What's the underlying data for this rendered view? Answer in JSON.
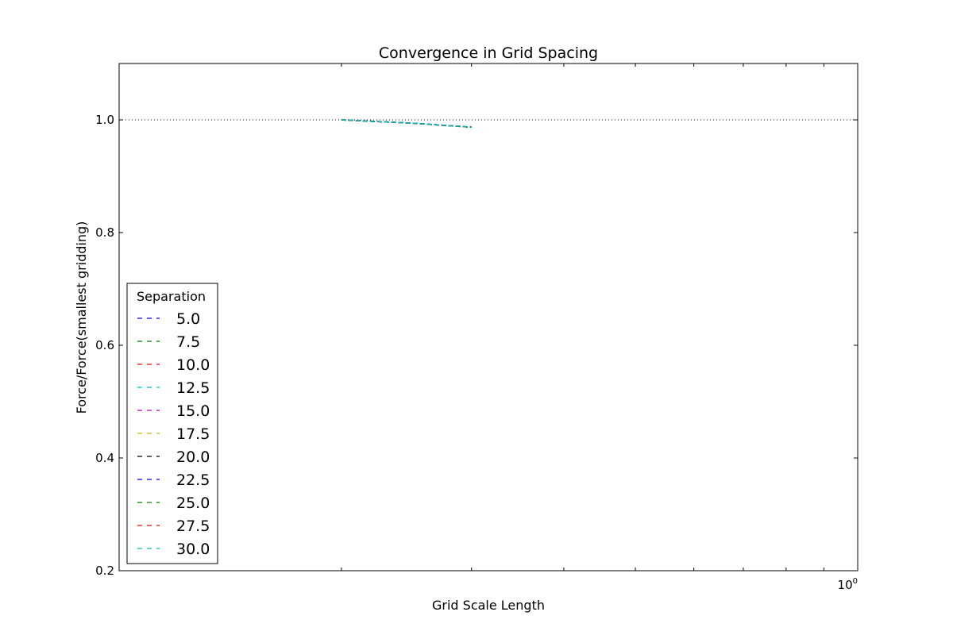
{
  "chart_data": {
    "type": "line",
    "title": "Convergence in Grid Spacing",
    "xlabel": "Grid Scale Length",
    "ylabel": "Force/Force(smallest gridding)",
    "xscale": "log",
    "xlim": [
      0.1,
      1.0
    ],
    "ylim": [
      0.2,
      1.1
    ],
    "yticks": [
      0.2,
      0.4,
      0.6,
      0.8,
      1.0
    ],
    "ytick_labels": [
      "0.2",
      "0.4",
      "0.6",
      "0.8",
      "1.0"
    ],
    "xtick_label_base": "10",
    "xtick_label_exp": "0",
    "reference_line": {
      "y": 1.0,
      "style": "dotted",
      "color": "#000000"
    },
    "grid": false,
    "legend": {
      "title": "Separation",
      "placement": "lower-left",
      "entries": [
        "5.0",
        "7.5",
        "10.0",
        "12.5",
        "15.0",
        "17.5",
        "20.0",
        "22.5",
        "25.0",
        "27.5",
        "30.0"
      ]
    },
    "series": [
      {
        "name": "5.0",
        "color": "#0000ff",
        "x": [
          0.2,
          0.25,
          0.3
        ],
        "y": [
          1.0,
          0.994,
          0.987
        ]
      },
      {
        "name": "7.5",
        "color": "#008000",
        "x": [
          0.2,
          0.25,
          0.3
        ],
        "y": [
          1.0,
          0.994,
          0.987
        ]
      },
      {
        "name": "10.0",
        "color": "#ff0000",
        "x": [
          0.2,
          0.25,
          0.3
        ],
        "y": [
          1.0,
          0.994,
          0.987
        ]
      },
      {
        "name": "12.5",
        "color": "#00bfbf",
        "x": [
          0.2,
          0.25,
          0.3
        ],
        "y": [
          1.0,
          0.994,
          0.987
        ]
      },
      {
        "name": "15.0",
        "color": "#bf00bf",
        "x": [
          0.2,
          0.25,
          0.3
        ],
        "y": [
          1.0,
          0.994,
          0.987
        ]
      },
      {
        "name": "17.5",
        "color": "#bfbf00",
        "x": [
          0.2,
          0.25,
          0.3
        ],
        "y": [
          1.0,
          0.994,
          0.987
        ]
      },
      {
        "name": "20.0",
        "color": "#000000",
        "x": [
          0.2,
          0.25,
          0.3
        ],
        "y": [
          1.0,
          0.994,
          0.987
        ]
      },
      {
        "name": "22.5",
        "color": "#0000ff",
        "x": [
          0.2,
          0.25,
          0.3
        ],
        "y": [
          1.0,
          0.994,
          0.987
        ]
      },
      {
        "name": "25.0",
        "color": "#008000",
        "x": [
          0.2,
          0.25,
          0.3
        ],
        "y": [
          1.0,
          0.994,
          0.987
        ]
      },
      {
        "name": "27.5",
        "color": "#ff0000",
        "x": [
          0.2,
          0.25,
          0.3
        ],
        "y": [
          1.0,
          0.994,
          0.987
        ]
      },
      {
        "name": "30.0",
        "color": "#00bfbf",
        "x": [
          0.2,
          0.25,
          0.3
        ],
        "y": [
          1.0,
          0.994,
          0.987
        ]
      }
    ]
  }
}
